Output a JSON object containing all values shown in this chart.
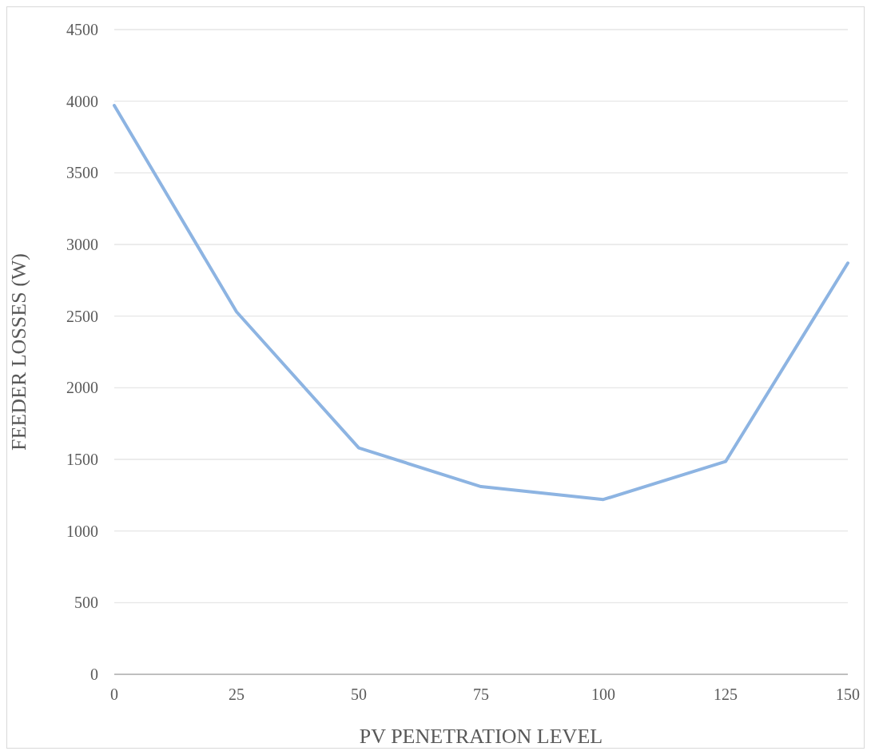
{
  "chart_data": {
    "type": "line",
    "xlabel": "PV PENETRATION LEVEL",
    "ylabel": "FEEDER LOSSES (W)",
    "categories": [
      "0",
      "25",
      "50",
      "75",
      "100",
      "125",
      "150"
    ],
    "series": [
      {
        "color": "#8db4e2",
        "values": [
          3970,
          2530,
          1580,
          1310,
          1220,
          1485,
          2870
        ]
      }
    ],
    "ylim": [
      0,
      4500
    ],
    "yticks": [
      0,
      500,
      1000,
      1500,
      2000,
      2500,
      3000,
      3500,
      4000,
      4500
    ],
    "grid": "y",
    "marker": "none"
  }
}
